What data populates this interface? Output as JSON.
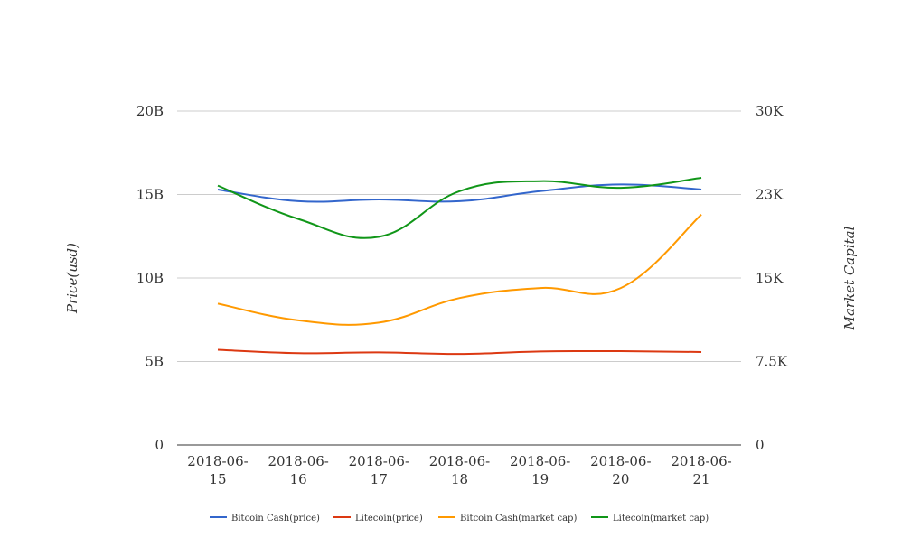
{
  "chart_data": {
    "type": "line",
    "title": "",
    "categories": [
      "2018-06-15",
      "2018-06-16",
      "2018-06-17",
      "2018-06-18",
      "2018-06-19",
      "2018-06-20",
      "2018-06-21"
    ],
    "x_tick_labels": [
      [
        "2018-06-",
        "15"
      ],
      [
        "2018-06-",
        "16"
      ],
      [
        "2018-06-",
        "17"
      ],
      [
        "2018-06-",
        "18"
      ],
      [
        "2018-06-",
        "19"
      ],
      [
        "2018-06-",
        "20"
      ],
      [
        "2018-06-",
        "21"
      ]
    ],
    "y_left": {
      "label": "Price(usd)",
      "range": [
        0,
        20000000000
      ],
      "ticks": [
        0,
        5000000000,
        10000000000,
        15000000000,
        20000000000
      ],
      "tick_labels": [
        "0",
        "5B",
        "10B",
        "15B",
        "20B"
      ]
    },
    "y_right": {
      "label": "Market Capital",
      "range": [
        0,
        30000
      ],
      "ticks": [
        0,
        7500,
        15000,
        22500,
        30000
      ],
      "tick_labels": [
        "0",
        "7.5K",
        "15K",
        "23K",
        "30K"
      ]
    },
    "grid": true,
    "legend_position": "bottom",
    "series": [
      {
        "name": "Bitcoin Cash(price)",
        "axis": "left",
        "color": "#3366cc",
        "values": [
          15300000000,
          14600000000,
          14700000000,
          14600000000,
          15200000000,
          15600000000,
          15300000000
        ]
      },
      {
        "name": "Litecoin(price)",
        "axis": "left",
        "color": "#dc3912",
        "values": [
          5700000000,
          5500000000,
          5550000000,
          5450000000,
          5600000000,
          5620000000,
          5570000000
        ]
      },
      {
        "name": "Bitcoin Cash(market cap)",
        "axis": "right",
        "color": "#ff9900",
        "values": [
          12700,
          11200,
          11000,
          13200,
          14100,
          14100,
          20700
        ]
      },
      {
        "name": "Litecoin(market cap)",
        "axis": "right",
        "color": "#109618",
        "values": [
          23300,
          20300,
          18700,
          22800,
          23700,
          23100,
          24000
        ]
      }
    ]
  }
}
